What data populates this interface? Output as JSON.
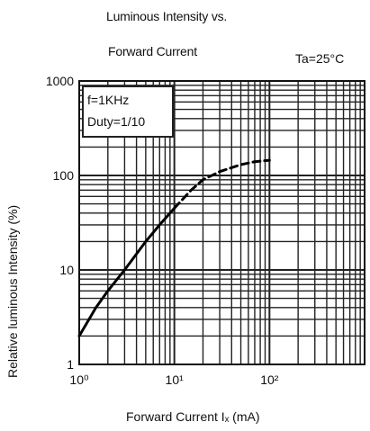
{
  "chart_data": {
    "type": "line",
    "title": "Luminous Intensity vs.",
    "subtitle": "Forward Current",
    "condition": "Ta=25°C",
    "xlabel": "Forward Current  Iₓ (mA)",
    "ylabel": "Relative luminous Intensity (%)",
    "xscale": "log",
    "yscale": "log",
    "xlim": [
      1,
      1000
    ],
    "ylim": [
      1,
      1000
    ],
    "x_tick_labels": [
      "10⁰",
      "10¹",
      "10²"
    ],
    "y_tick_labels": [
      "1",
      "10",
      "100",
      "1000"
    ],
    "grid": true,
    "legend": {
      "placement": "top-left",
      "lines": [
        "f=1KHz",
        "Duty=1/10"
      ]
    },
    "series": [
      {
        "style": "solid",
        "x": [
          1,
          1.5,
          2,
          3,
          5,
          7,
          10
        ],
        "y": [
          2,
          4,
          6,
          10,
          20,
          30,
          45
        ]
      },
      {
        "style": "dashed",
        "x": [
          10,
          15,
          20,
          30,
          50,
          70,
          100
        ],
        "y": [
          45,
          70,
          90,
          110,
          130,
          140,
          145
        ]
      }
    ]
  }
}
